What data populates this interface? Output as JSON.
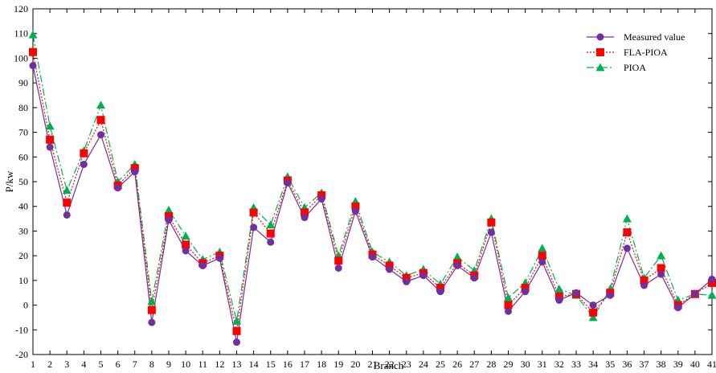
{
  "chart_data": {
    "type": "line",
    "title": "",
    "xlabel": "Branch",
    "ylabel": "P/kw",
    "ylim": [
      -20,
      120
    ],
    "yticks": [
      -20,
      -10,
      0,
      10,
      20,
      30,
      40,
      50,
      60,
      70,
      80,
      90,
      100,
      110,
      120
    ],
    "x": [
      1,
      2,
      3,
      4,
      5,
      6,
      7,
      8,
      9,
      10,
      11,
      12,
      13,
      14,
      15,
      16,
      17,
      18,
      19,
      20,
      21,
      22,
      23,
      24,
      25,
      26,
      27,
      28,
      29,
      30,
      31,
      32,
      33,
      34,
      35,
      36,
      37,
      38,
      39,
      40,
      41
    ],
    "grid": false,
    "legend_position": "top-right",
    "series": [
      {
        "name": "Measured value",
        "color": "#7030a0",
        "marker": "circle",
        "line_style": "solid",
        "values": [
          97,
          64,
          36.5,
          57,
          69,
          47.5,
          54,
          -7,
          34.5,
          22,
          16,
          19,
          -15,
          31.5,
          25.5,
          49.5,
          35.5,
          43,
          15,
          38,
          19.5,
          14.5,
          9.5,
          12,
          5.5,
          16,
          11,
          29.5,
          -2.5,
          5.5,
          17.5,
          2,
          5,
          0,
          4,
          23,
          8,
          12.5,
          -1,
          4.5,
          10.5
        ]
      },
      {
        "name": "FLA-PIOA",
        "color": "#ff0000",
        "marker": "square",
        "line_style": "dotted",
        "values": [
          102.5,
          67,
          41.5,
          61.5,
          75,
          48.5,
          55.5,
          -2,
          36,
          24.5,
          17,
          20,
          -10.5,
          37.5,
          29,
          50.5,
          37.5,
          44.5,
          18,
          40,
          20.5,
          16,
          11,
          13,
          7,
          17,
          12,
          33.5,
          0,
          7,
          20,
          3.5,
          4.5,
          -3,
          5,
          29.5,
          10,
          15,
          0,
          4.5,
          9
        ]
      },
      {
        "name": "PIOA",
        "color": "#00b050",
        "marker": "triangle",
        "line_style": "dash-dot",
        "values": [
          109.5,
          72.5,
          46.5,
          62.5,
          81,
          50,
          57,
          1.5,
          38.5,
          28,
          18.5,
          21.5,
          -6.5,
          39.5,
          32.5,
          52,
          39.5,
          45.5,
          20,
          42,
          21.5,
          17.5,
          12,
          14.5,
          8.5,
          19.5,
          14,
          35,
          3,
          9,
          23,
          6.5,
          4,
          -5,
          6.5,
          35,
          11,
          20,
          2,
          4.5,
          4
        ]
      }
    ]
  }
}
